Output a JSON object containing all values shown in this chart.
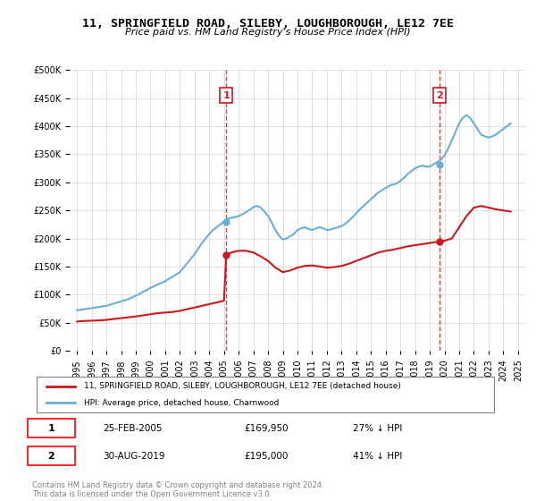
{
  "title": "11, SPRINGFIELD ROAD, SILEBY, LOUGHBOROUGH, LE12 7EE",
  "subtitle": "Price paid vs. HM Land Registry's House Price Index (HPI)",
  "legend_line1": "11, SPRINGFIELD ROAD, SILEBY, LOUGHBOROUGH, LE12 7EE (detached house)",
  "legend_line2": "HPI: Average price, detached house, Charnwood",
  "annotation1": {
    "label": "1",
    "date": "25-FEB-2005",
    "price": "£169,950",
    "pct": "27% ↓ HPI",
    "x_year": 2005.15
  },
  "annotation2": {
    "label": "2",
    "date": "30-AUG-2019",
    "price": "£195,000",
    "pct": "41% ↓ HPI",
    "x_year": 2019.66
  },
  "footnote": "Contains HM Land Registry data © Crown copyright and database right 2024.\nThis data is licensed under the Open Government Licence v3.0.",
  "hpi_color": "#6baed6",
  "price_color": "#cb181d",
  "dashed_color": "#cb181d",
  "ylim": [
    0,
    500000
  ],
  "yticks": [
    0,
    50000,
    100000,
    150000,
    200000,
    250000,
    300000,
    350000,
    400000,
    450000,
    500000
  ],
  "xlim_start": 1994.5,
  "xlim_end": 2025.5,
  "xticks": [
    1995,
    1996,
    1997,
    1998,
    1999,
    2000,
    2001,
    2002,
    2003,
    2004,
    2005,
    2006,
    2007,
    2008,
    2009,
    2010,
    2011,
    2012,
    2013,
    2014,
    2015,
    2016,
    2017,
    2018,
    2019,
    2020,
    2021,
    2022,
    2023,
    2024,
    2025
  ],
  "hpi_x": [
    1995.0,
    1995.25,
    1995.5,
    1995.75,
    1996.0,
    1996.25,
    1996.5,
    1996.75,
    1997.0,
    1997.25,
    1997.5,
    1997.75,
    1998.0,
    1998.25,
    1998.5,
    1998.75,
    1999.0,
    1999.25,
    1999.5,
    1999.75,
    2000.0,
    2000.25,
    2000.5,
    2000.75,
    2001.0,
    2001.25,
    2001.5,
    2001.75,
    2002.0,
    2002.25,
    2002.5,
    2002.75,
    2003.0,
    2003.25,
    2003.5,
    2003.75,
    2004.0,
    2004.25,
    2004.5,
    2004.75,
    2005.0,
    2005.25,
    2005.5,
    2005.75,
    2006.0,
    2006.25,
    2006.5,
    2006.75,
    2007.0,
    2007.25,
    2007.5,
    2007.75,
    2008.0,
    2008.25,
    2008.5,
    2008.75,
    2009.0,
    2009.25,
    2009.5,
    2009.75,
    2010.0,
    2010.25,
    2010.5,
    2010.75,
    2011.0,
    2011.25,
    2011.5,
    2011.75,
    2012.0,
    2012.25,
    2012.5,
    2012.75,
    2013.0,
    2013.25,
    2013.5,
    2013.75,
    2014.0,
    2014.25,
    2014.5,
    2014.75,
    2015.0,
    2015.25,
    2015.5,
    2015.75,
    2016.0,
    2016.25,
    2016.5,
    2016.75,
    2017.0,
    2017.25,
    2017.5,
    2017.75,
    2018.0,
    2018.25,
    2018.5,
    2018.75,
    2019.0,
    2019.25,
    2019.5,
    2019.75,
    2020.0,
    2020.25,
    2020.5,
    2020.75,
    2021.0,
    2021.25,
    2021.5,
    2021.75,
    2022.0,
    2022.25,
    2022.5,
    2022.75,
    2023.0,
    2023.25,
    2023.5,
    2023.75,
    2024.0,
    2024.25,
    2024.5
  ],
  "hpi_y": [
    72000,
    73000,
    74000,
    75000,
    76000,
    77000,
    78000,
    79000,
    80000,
    82000,
    84000,
    86000,
    88000,
    90000,
    92000,
    95000,
    98000,
    101000,
    105000,
    108000,
    112000,
    115000,
    118000,
    121000,
    124000,
    128000,
    132000,
    136000,
    140000,
    148000,
    156000,
    164000,
    172000,
    182000,
    192000,
    200000,
    208000,
    215000,
    220000,
    225000,
    230000,
    235000,
    237000,
    238000,
    240000,
    243000,
    247000,
    251000,
    256000,
    258000,
    255000,
    248000,
    240000,
    228000,
    215000,
    205000,
    198000,
    200000,
    204000,
    208000,
    215000,
    218000,
    220000,
    217000,
    215000,
    218000,
    220000,
    218000,
    215000,
    216000,
    218000,
    220000,
    222000,
    226000,
    232000,
    238000,
    245000,
    252000,
    258000,
    264000,
    270000,
    276000,
    282000,
    286000,
    290000,
    294000,
    296000,
    298000,
    303000,
    308000,
    315000,
    320000,
    325000,
    328000,
    330000,
    328000,
    328000,
    332000,
    336000,
    340000,
    348000,
    360000,
    375000,
    390000,
    405000,
    415000,
    420000,
    415000,
    405000,
    395000,
    385000,
    382000,
    380000,
    382000,
    385000,
    390000,
    395000,
    400000,
    405000
  ],
  "price_x": [
    1995.0,
    1995.5,
    1996.0,
    1996.5,
    1997.0,
    1997.5,
    1998.0,
    1998.5,
    1999.0,
    1999.5,
    2000.0,
    2000.5,
    2001.0,
    2001.5,
    2002.0,
    2002.5,
    2003.0,
    2003.5,
    2004.0,
    2004.5,
    2005.0,
    2005.15,
    2005.5,
    2006.0,
    2006.5,
    2007.0,
    2007.5,
    2008.0,
    2008.5,
    2009.0,
    2009.5,
    2010.0,
    2010.5,
    2011.0,
    2011.5,
    2012.0,
    2012.5,
    2013.0,
    2013.5,
    2014.0,
    2014.5,
    2015.0,
    2015.5,
    2016.0,
    2016.5,
    2017.0,
    2017.5,
    2018.0,
    2018.5,
    2019.0,
    2019.5,
    2019.66,
    2020.0,
    2020.5,
    2021.0,
    2021.5,
    2022.0,
    2022.5,
    2023.0,
    2023.5,
    2024.0,
    2024.5
  ],
  "price_y": [
    52000,
    53000,
    53500,
    54000,
    55000,
    56500,
    58000,
    59500,
    61000,
    63000,
    65000,
    67000,
    68000,
    69000,
    71000,
    74000,
    77000,
    80000,
    83000,
    86000,
    89000,
    169950,
    175000,
    178000,
    178000,
    175000,
    168000,
    160000,
    148000,
    140000,
    143000,
    148000,
    151000,
    152000,
    150000,
    148000,
    149000,
    151000,
    155000,
    160000,
    165000,
    170000,
    175000,
    178000,
    180000,
    183000,
    186000,
    188000,
    190000,
    192000,
    194000,
    195000,
    196000,
    200000,
    220000,
    240000,
    255000,
    258000,
    255000,
    252000,
    250000,
    248000
  ]
}
